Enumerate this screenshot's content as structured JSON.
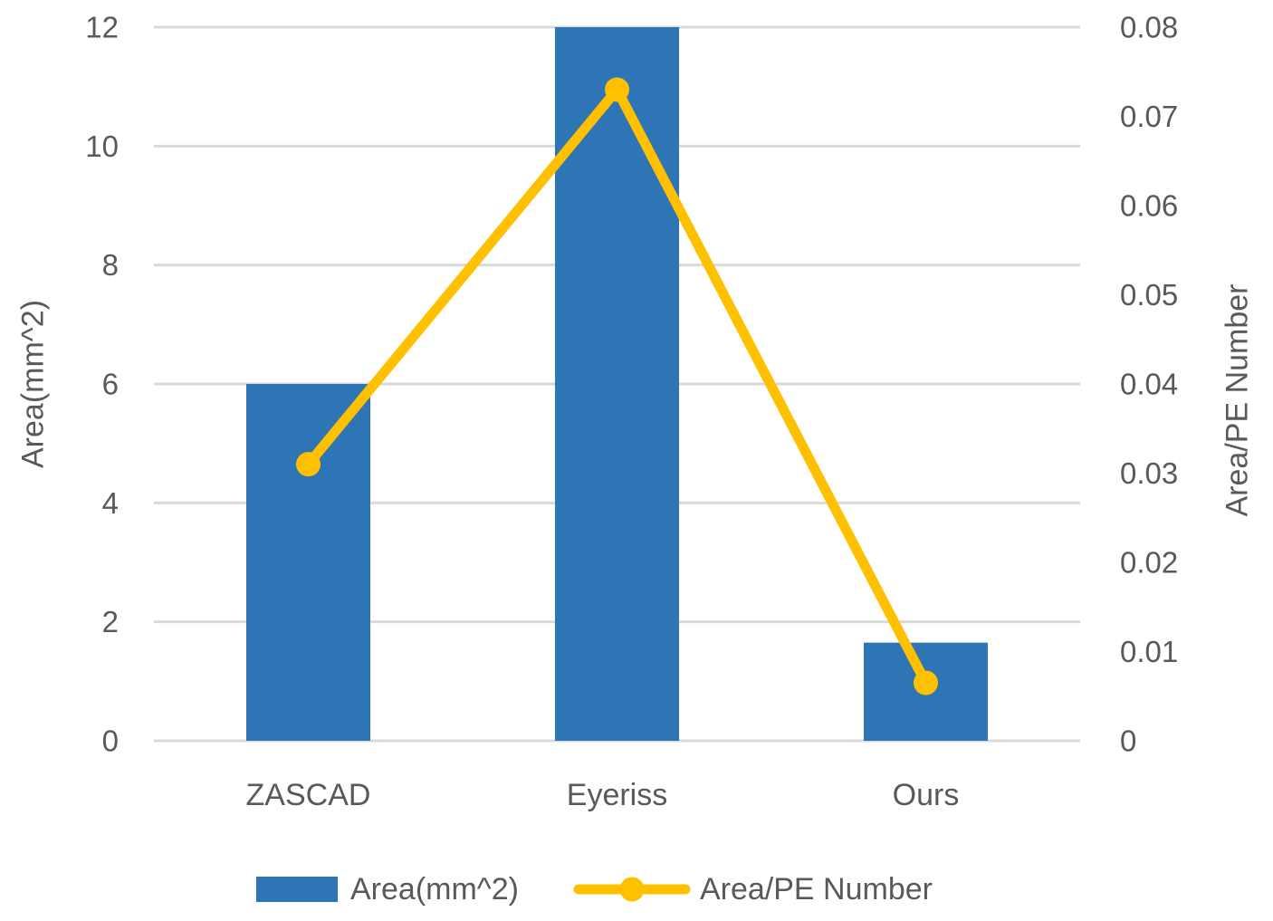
{
  "colors": {
    "bar": "#2E75B6",
    "line": "#FFC000",
    "grid": "#D9D9D9",
    "text": "#595959",
    "background": "#FFFFFF"
  },
  "chart_data": {
    "type": "combo_bar_line",
    "categories": [
      "ZASCAD",
      "Eyeriss",
      "Ours"
    ],
    "series": [
      {
        "name": "Area(mm^2)",
        "type": "bar",
        "axis": "left",
        "color": "#2E75B6",
        "values": [
          6,
          12,
          1.65
        ]
      },
      {
        "name": "Area/PE Number",
        "type": "line",
        "axis": "right",
        "color": "#FFC000",
        "values": [
          0.031,
          0.073,
          0.0065
        ]
      }
    ],
    "left_axis": {
      "label": "Area(mm^2)",
      "min": 0,
      "max": 12,
      "ticks": [
        0,
        2,
        4,
        6,
        8,
        10,
        12
      ],
      "tick_labels": [
        "0",
        "2",
        "4",
        "6",
        "8",
        "10",
        "12"
      ]
    },
    "right_axis": {
      "label": "Area/PE Number",
      "min": 0,
      "max": 0.08,
      "ticks": [
        0,
        0.01,
        0.02,
        0.03,
        0.04,
        0.05,
        0.06,
        0.07,
        0.08
      ],
      "tick_labels": [
        "0",
        "0.01",
        "0.02",
        "0.03",
        "0.04",
        "0.05",
        "0.06",
        "0.07",
        "0.08"
      ]
    },
    "grid": true,
    "legend_position": "bottom"
  },
  "legend": {
    "items": [
      {
        "label": "Area(mm^2)",
        "swatch": "bar"
      },
      {
        "label": "Area/PE Number",
        "swatch": "line-marker"
      }
    ]
  }
}
